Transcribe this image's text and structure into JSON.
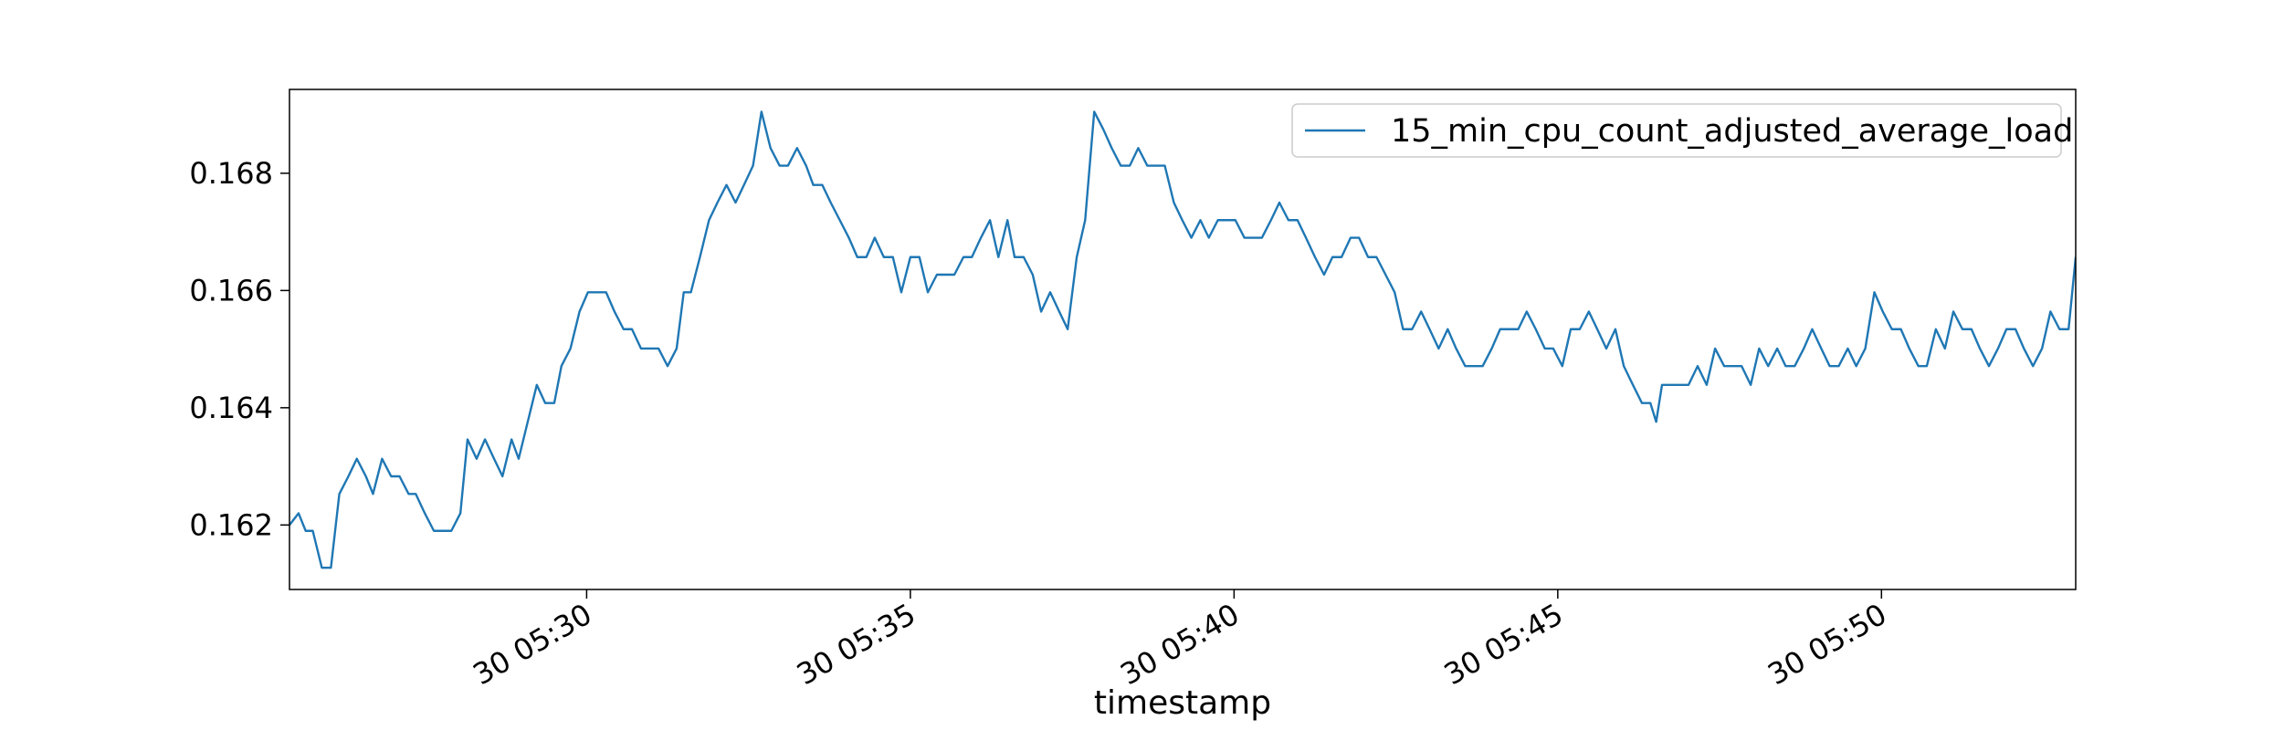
{
  "chart_data": {
    "type": "line",
    "xlabel": "timestamp",
    "legend": "upper right",
    "grid": false,
    "x": [
      25.41,
      25.55,
      25.66,
      25.77,
      25.91,
      26.05,
      26.18,
      26.32,
      26.45,
      26.59,
      26.7,
      26.84,
      26.98,
      27.11,
      27.25,
      27.36,
      27.5,
      27.64,
      27.77,
      27.91,
      28.05,
      28.16,
      28.3,
      28.43,
      28.57,
      28.7,
      28.84,
      28.95,
      29.09,
      29.23,
      29.36,
      29.5,
      29.61,
      29.75,
      29.89,
      30.02,
      30.16,
      30.3,
      30.43,
      30.57,
      30.7,
      30.84,
      30.98,
      31.11,
      31.25,
      31.39,
      31.5,
      31.61,
      31.75,
      31.89,
      32.02,
      32.16,
      32.3,
      32.43,
      32.57,
      32.7,
      32.84,
      32.98,
      33.11,
      33.25,
      33.39,
      33.5,
      33.64,
      33.77,
      33.91,
      34.05,
      34.18,
      34.32,
      34.45,
      34.59,
      34.73,
      34.86,
      35.0,
      35.14,
      35.27,
      35.41,
      35.55,
      35.68,
      35.82,
      35.95,
      36.09,
      36.23,
      36.36,
      36.5,
      36.61,
      36.75,
      36.89,
      37.02,
      37.16,
      37.3,
      37.43,
      37.57,
      37.7,
      37.84,
      37.98,
      38.11,
      38.25,
      38.39,
      38.52,
      38.66,
      38.8,
      38.93,
      39.07,
      39.2,
      39.34,
      39.48,
      39.61,
      39.75,
      39.89,
      40.02,
      40.16,
      40.3,
      40.43,
      40.57,
      40.7,
      40.84,
      40.98,
      41.11,
      41.25,
      41.39,
      41.52,
      41.66,
      41.8,
      41.93,
      42.07,
      42.2,
      42.34,
      42.48,
      42.61,
      42.75,
      42.89,
      43.02,
      43.16,
      43.3,
      43.43,
      43.57,
      43.7,
      43.84,
      43.98,
      44.11,
      44.25,
      44.39,
      44.52,
      44.66,
      44.8,
      44.93,
      45.07,
      45.2,
      45.34,
      45.48,
      45.61,
      45.75,
      45.89,
      46.02,
      46.16,
      46.3,
      46.43,
      46.52,
      46.61,
      46.75,
      46.89,
      47.02,
      47.16,
      47.3,
      47.43,
      47.57,
      47.7,
      47.84,
      47.98,
      48.11,
      48.25,
      48.39,
      48.52,
      48.66,
      48.8,
      48.93,
      49.07,
      49.2,
      49.34,
      49.48,
      49.61,
      49.75,
      49.89,
      50.02,
      50.16,
      50.3,
      50.43,
      50.57,
      50.7,
      50.84,
      50.98,
      51.11,
      51.25,
      51.39,
      51.52,
      51.66,
      51.8,
      51.93,
      52.07,
      52.2,
      52.34,
      52.48,
      52.61,
      52.75,
      52.89,
      53.0
    ],
    "series": [
      {
        "name": "15_min_cpu_count_adjusted_average_load",
        "color": "#1f77b4",
        "values": [
          0.162,
          0.1622,
          0.1619,
          0.1619,
          0.16127,
          0.16127,
          0.16253,
          0.16283,
          0.16313,
          0.16283,
          0.16253,
          0.16313,
          0.16283,
          0.16283,
          0.16253,
          0.16253,
          0.1622,
          0.1619,
          0.1619,
          0.1619,
          0.1622,
          0.16346,
          0.16313,
          0.16346,
          0.16313,
          0.16283,
          0.16346,
          0.16313,
          0.16376,
          0.16439,
          0.16408,
          0.16408,
          0.16471,
          0.16501,
          0.16564,
          0.16597,
          0.16597,
          0.16597,
          0.16564,
          0.16534,
          0.16534,
          0.16501,
          0.16501,
          0.16501,
          0.16471,
          0.16501,
          0.16597,
          0.16597,
          0.16657,
          0.1672,
          0.1675,
          0.1678,
          0.1675,
          0.1678,
          0.16813,
          0.16905,
          0.16843,
          0.16813,
          0.16813,
          0.16843,
          0.16813,
          0.1678,
          0.1678,
          0.1675,
          0.1672,
          0.1669,
          0.16657,
          0.16657,
          0.1669,
          0.16657,
          0.16657,
          0.16597,
          0.16657,
          0.16657,
          0.16597,
          0.16627,
          0.16627,
          0.16627,
          0.16657,
          0.16657,
          0.1669,
          0.1672,
          0.16657,
          0.1672,
          0.16657,
          0.16657,
          0.16627,
          0.16564,
          0.16597,
          0.16564,
          0.16534,
          0.16657,
          0.1672,
          0.16905,
          0.16875,
          0.16843,
          0.16813,
          0.16813,
          0.16843,
          0.16813,
          0.16813,
          0.16813,
          0.1675,
          0.1672,
          0.1669,
          0.1672,
          0.1669,
          0.1672,
          0.1672,
          0.1672,
          0.1669,
          0.1669,
          0.1669,
          0.1672,
          0.1675,
          0.1672,
          0.1672,
          0.1669,
          0.16657,
          0.16627,
          0.16657,
          0.16657,
          0.1669,
          0.1669,
          0.16657,
          0.16657,
          0.16627,
          0.16597,
          0.16534,
          0.16534,
          0.16564,
          0.16534,
          0.16501,
          0.16534,
          0.16501,
          0.16471,
          0.16471,
          0.16471,
          0.16501,
          0.16534,
          0.16534,
          0.16534,
          0.16564,
          0.16534,
          0.16501,
          0.16501,
          0.16471,
          0.16534,
          0.16534,
          0.16564,
          0.16534,
          0.16501,
          0.16534,
          0.16471,
          0.16439,
          0.16408,
          0.16408,
          0.16376,
          0.16439,
          0.16439,
          0.16439,
          0.16439,
          0.16471,
          0.16439,
          0.16501,
          0.16471,
          0.16471,
          0.16471,
          0.16439,
          0.16501,
          0.16471,
          0.16501,
          0.16471,
          0.16471,
          0.16501,
          0.16534,
          0.16501,
          0.16471,
          0.16471,
          0.16501,
          0.16471,
          0.16501,
          0.16597,
          0.16564,
          0.16534,
          0.16534,
          0.16501,
          0.16471,
          0.16471,
          0.16534,
          0.16501,
          0.16564,
          0.16534,
          0.16534,
          0.16501,
          0.16471,
          0.16501,
          0.16534,
          0.16534,
          0.16501,
          0.16471,
          0.16501,
          0.16564,
          0.16534,
          0.16534,
          0.16657
        ]
      }
    ],
    "xlim": [
      25.41,
      53.0
    ],
    "xticks": [
      {
        "value": 30,
        "label": "30 05:30"
      },
      {
        "value": 35,
        "label": "30 05:35"
      },
      {
        "value": 40,
        "label": "30 05:40"
      },
      {
        "value": 45,
        "label": "30 05:45"
      },
      {
        "value": 50,
        "label": "30 05:50"
      }
    ],
    "ylim": [
      0.1609,
      0.16943
    ],
    "yticks": [
      0.162,
      0.164,
      0.166,
      0.168
    ]
  }
}
